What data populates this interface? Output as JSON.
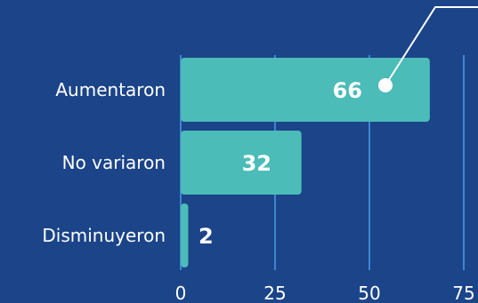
{
  "chart_data": {
    "type": "bar",
    "orientation": "horizontal",
    "categories": [
      "Aumentaron",
      "No variaron",
      "Disminuyeron"
    ],
    "values": [
      66,
      32,
      2
    ],
    "xticks": [
      "0",
      "25",
      "50",
      "75"
    ],
    "xlim": [
      0,
      75
    ],
    "title": "",
    "xlabel": "",
    "ylabel": "",
    "grid": true,
    "legend": "none",
    "value_labels": [
      "66",
      "32",
      "2"
    ]
  },
  "colors": {
    "background": "#1b4489",
    "bar": "#4bbcb7",
    "grid": "#3d86d2",
    "text": "#ffffff",
    "callout": "#ffffff"
  }
}
